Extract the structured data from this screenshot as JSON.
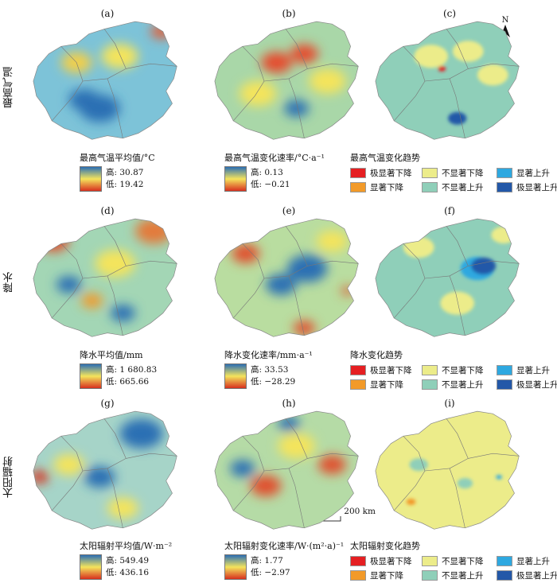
{
  "row_labels": [
    "最高气温",
    "降水",
    "太阳辐射"
  ],
  "north_label": "N",
  "scale_bar": {
    "zero": "0",
    "distance": "200 km"
  },
  "colors": {
    "red": "#e51f22",
    "orange": "#f29a29",
    "yellow": "#ecec8a",
    "teal": "#8fcfb9",
    "lightblue": "#2ea8e0",
    "darkblue": "#2358a8",
    "grad_top": "#2b6fb4",
    "grad_mid": "#f4e45c",
    "grad_bottom": "#d7301f"
  },
  "panels": [
    {
      "letter": "(a)",
      "kind": "continuous",
      "base": "#7dc3d8",
      "blobs": [
        [
          "#2b6fb4",
          0.45,
          0.72,
          0.13
        ],
        [
          "#f4e45c",
          0.58,
          0.3,
          0.12
        ],
        [
          "#e0613a",
          0.85,
          0.1,
          0.07
        ],
        [
          "#f2cf4a",
          0.3,
          0.35,
          0.1
        ],
        [
          "#2b6fb4",
          0.35,
          0.65,
          0.1
        ]
      ],
      "legend": {
        "title": "最高气温平均值/°C",
        "high": "高: 30.87",
        "low": "低: 19.42"
      }
    },
    {
      "letter": "(b)",
      "kind": "continuous",
      "base": "#a9d7a8",
      "blobs": [
        [
          "#e54b2e",
          0.42,
          0.35,
          0.1
        ],
        [
          "#e54b2e",
          0.6,
          0.28,
          0.09
        ],
        [
          "#f4e45c",
          0.75,
          0.5,
          0.12
        ],
        [
          "#f4e45c",
          0.3,
          0.6,
          0.12
        ],
        [
          "#2b6fb4",
          0.55,
          0.72,
          0.08
        ]
      ],
      "legend": {
        "title": "最高气温变化速率/°C·a⁻¹",
        "high": "高: 0.13",
        "low": "低: −0.21"
      }
    },
    {
      "letter": "(c)",
      "kind": "categorical",
      "base": "#8fcfb9",
      "blobs": [
        [
          "#ecec8a",
          0.38,
          0.3,
          0.11
        ],
        [
          "#ecec8a",
          0.62,
          0.26,
          0.1
        ],
        [
          "#ecec8a",
          0.78,
          0.45,
          0.1
        ],
        [
          "#2358a8",
          0.55,
          0.8,
          0.06
        ],
        [
          "#e51f22",
          0.45,
          0.4,
          0.025
        ]
      ],
      "legend": {
        "title": "最高气温变化趋势",
        "items": [
          {
            "label": "极显著下降",
            "color": "#e51f22"
          },
          {
            "label": "不显著下降",
            "color": "#ecec8a"
          },
          {
            "label": "显著上升",
            "color": "#2ea8e0"
          },
          {
            "label": "显著下降",
            "color": "#f29a29"
          },
          {
            "label": "不显著上升",
            "color": "#8fcfb9"
          },
          {
            "label": "极显著上升",
            "color": "#2358a8"
          }
        ]
      }
    },
    {
      "letter": "(d)",
      "kind": "continuous",
      "base": "#a3d6b5",
      "blobs": [
        [
          "#e37a3a",
          0.8,
          0.12,
          0.12
        ],
        [
          "#e0502e",
          0.15,
          0.2,
          0.1
        ],
        [
          "#f4e45c",
          0.55,
          0.38,
          0.13
        ],
        [
          "#2b6fb4",
          0.25,
          0.55,
          0.08
        ],
        [
          "#2b6fb4",
          0.6,
          0.78,
          0.08
        ],
        [
          "#f29a29",
          0.4,
          0.68,
          0.07
        ]
      ],
      "legend": {
        "title": "降水平均值/mm",
        "high": "高: 1 680.83",
        "low": "低: 665.66"
      }
    },
    {
      "letter": "(e)",
      "kind": "continuous",
      "base": "#b9dda0",
      "blobs": [
        [
          "#2b6fb4",
          0.62,
          0.42,
          0.13
        ],
        [
          "#2b6fb4",
          0.45,
          0.55,
          0.1
        ],
        [
          "#f4e45c",
          0.78,
          0.2,
          0.1
        ],
        [
          "#e0502e",
          0.22,
          0.3,
          0.09
        ],
        [
          "#e0502e",
          0.6,
          0.9,
          0.07
        ],
        [
          "#e0502e",
          0.88,
          0.6,
          0.04
        ]
      ],
      "legend": {
        "title": "降水变化速率/mm·a⁻¹",
        "high": "高: 33.53",
        "low": "低: −28.29"
      }
    },
    {
      "letter": "(f)",
      "kind": "categorical",
      "base": "#8fcfb9",
      "blobs": [
        [
          "#2ea8e0",
          0.68,
          0.42,
          0.11
        ],
        [
          "#2358a8",
          0.72,
          0.4,
          0.08
        ],
        [
          "#ecec8a",
          0.3,
          0.25,
          0.1
        ],
        [
          "#ecec8a",
          0.55,
          0.7,
          0.11
        ],
        [
          "#ecec8a",
          0.85,
          0.15,
          0.08
        ]
      ],
      "legend": {
        "title": "降水变化趋势",
        "items": [
          {
            "label": "极显著下降",
            "color": "#e51f22"
          },
          {
            "label": "不显著下降",
            "color": "#ecec8a"
          },
          {
            "label": "显著上升",
            "color": "#2ea8e0"
          },
          {
            "label": "显著下降",
            "color": "#f29a29"
          },
          {
            "label": "不显著上升",
            "color": "#8fcfb9"
          },
          {
            "label": "极显著上升",
            "color": "#2358a8"
          }
        ]
      }
    },
    {
      "letter": "(g)",
      "kind": "continuous",
      "base": "#a6d4c8",
      "blobs": [
        [
          "#2b6fb4",
          0.72,
          0.2,
          0.14
        ],
        [
          "#2b6fb4",
          0.45,
          0.55,
          0.1
        ],
        [
          "#f4e45c",
          0.25,
          0.45,
          0.1
        ],
        [
          "#d7301f",
          0.06,
          0.55,
          0.06
        ],
        [
          "#f4e45c",
          0.6,
          0.8,
          0.1
        ]
      ],
      "legend": {
        "title": "太阳辐射平均值/W·m⁻²",
        "high": "高: 549.49",
        "low": "低: 436.16"
      }
    },
    {
      "letter": "(h)",
      "kind": "continuous",
      "base": "#b5dba6",
      "blobs": [
        [
          "#e0502e",
          0.78,
          0.45,
          0.09
        ],
        [
          "#e0502e",
          0.35,
          0.62,
          0.1
        ],
        [
          "#f4e45c",
          0.55,
          0.3,
          0.12
        ],
        [
          "#2b6fb4",
          0.5,
          0.12,
          0.07
        ],
        [
          "#2b6fb4",
          0.2,
          0.48,
          0.08
        ]
      ],
      "legend": {
        "title": "太阳辐射变化速率/W·(m²·a)⁻¹",
        "high": "高: 1.77",
        "low": "低: −2.97"
      }
    },
    {
      "letter": "(i)",
      "kind": "categorical",
      "base": "#ecec8a",
      "blobs": [
        [
          "#8fcfb9",
          0.3,
          0.45,
          0.06
        ],
        [
          "#8fcfb9",
          0.6,
          0.6,
          0.05
        ],
        [
          "#f29a29",
          0.25,
          0.75,
          0.03
        ],
        [
          "#2ea8e0",
          0.82,
          0.55,
          0.02
        ]
      ],
      "legend": {
        "title": "太阳辐射变化趋势",
        "items": [
          {
            "label": "极显著下降",
            "color": "#e51f22"
          },
          {
            "label": "不显著下降",
            "color": "#ecec8a"
          },
          {
            "label": "显著上升",
            "color": "#2ea8e0"
          },
          {
            "label": "显著下降",
            "color": "#f29a29"
          },
          {
            "label": "不显著上升",
            "color": "#8fcfb9"
          },
          {
            "label": "极显著上升",
            "color": "#2358a8"
          }
        ]
      }
    }
  ]
}
